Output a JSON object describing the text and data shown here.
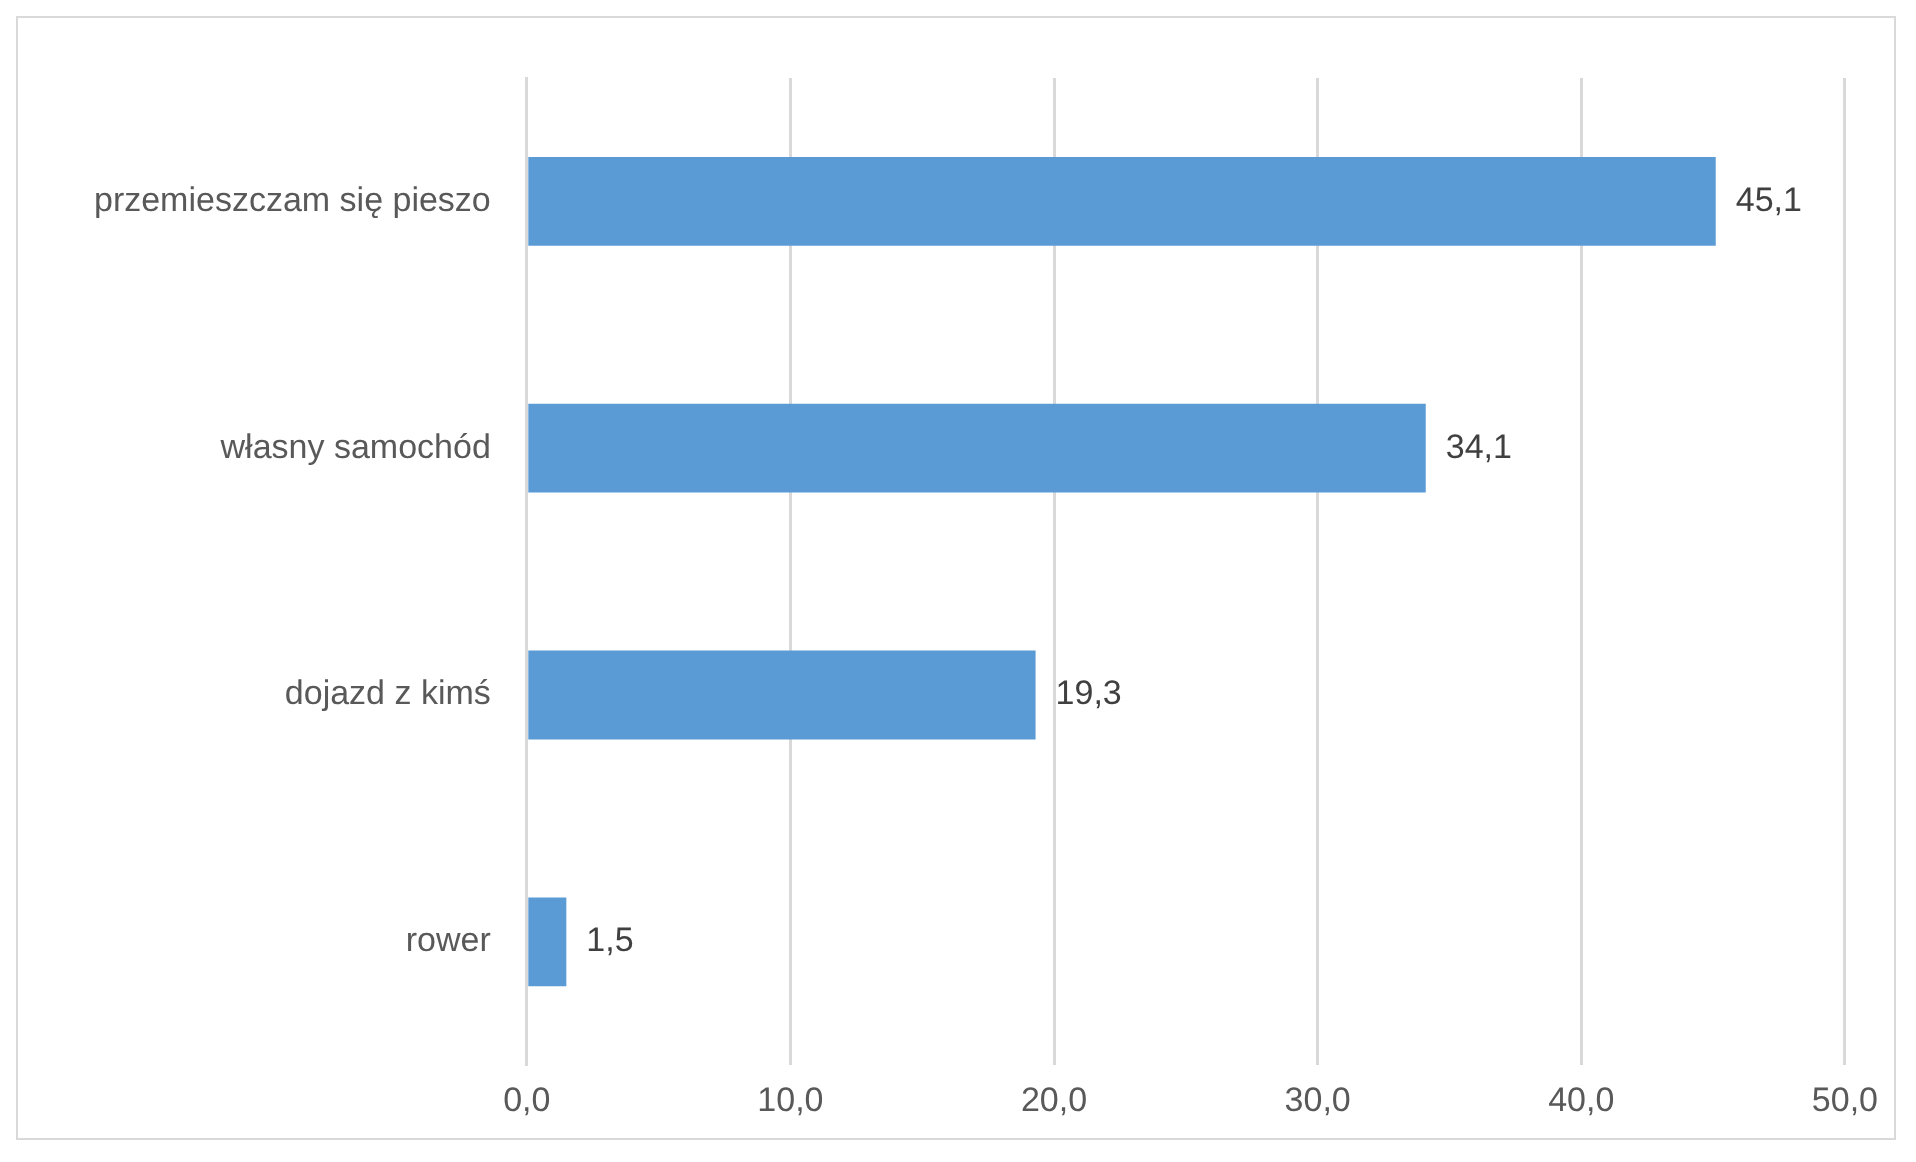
{
  "chart_data": {
    "type": "bar",
    "orientation": "horizontal",
    "categories": [
      "przemieszczam się pieszo",
      "własny samochód",
      "dojazd z kimś",
      "rower"
    ],
    "values": [
      45.1,
      34.1,
      19.3,
      1.5
    ],
    "color": "#5b9bd5",
    "value_labels": [
      "45,1",
      "34,1",
      "19,3",
      "1,5"
    ],
    "xlim": [
      0,
      50
    ],
    "xticks": [
      {
        "value": 0,
        "label": "0,0"
      },
      {
        "value": 10,
        "label": "10,0"
      },
      {
        "value": 20,
        "label": "20,0"
      },
      {
        "value": 30,
        "label": "30,0"
      },
      {
        "value": 40,
        "label": "40,0"
      },
      {
        "value": 50,
        "label": "50,0"
      }
    ],
    "grid": "x",
    "legend": false
  }
}
